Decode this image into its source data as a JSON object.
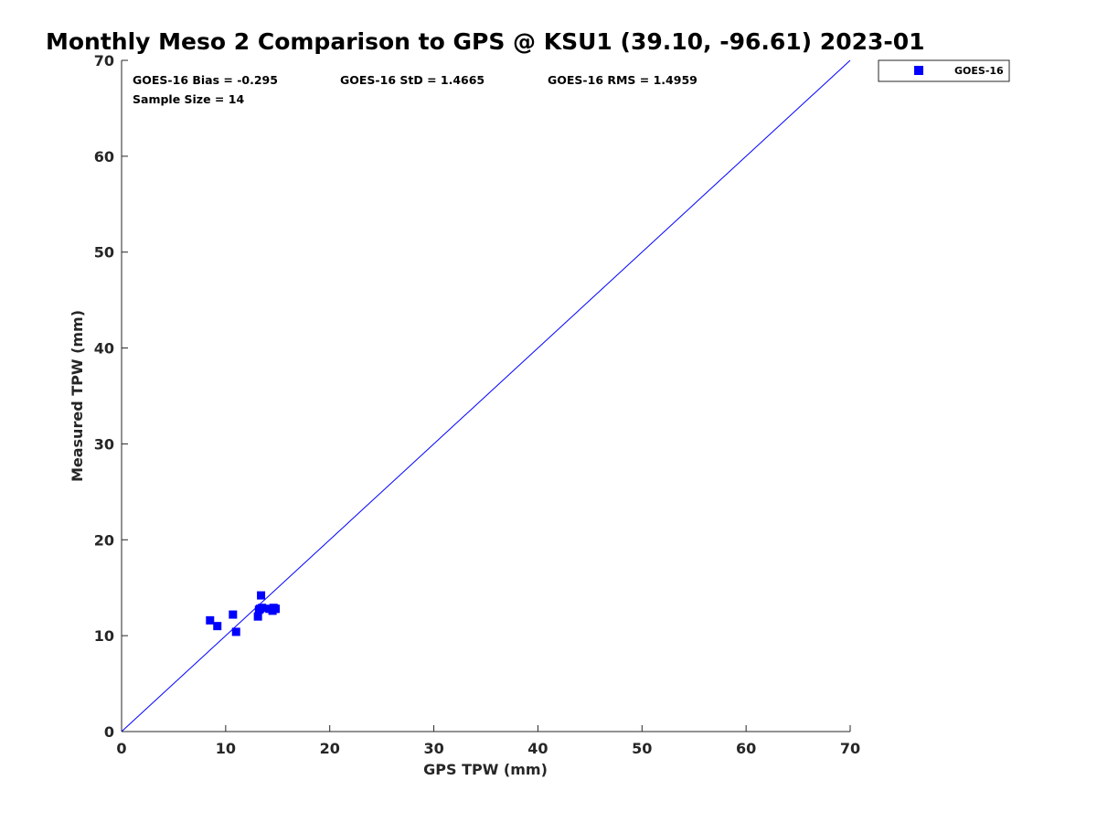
{
  "colors": {
    "series": "#0000ff",
    "line": "#0000ff",
    "axis": "#262626"
  },
  "chart_data": {
    "type": "scatter",
    "title": "Monthly Meso 2 Comparison to GPS @ KSU1 (39.10, -96.61) 2023-01",
    "xlabel": "GPS TPW (mm)",
    "ylabel": "Measured TPW (mm)",
    "xlim": [
      0,
      70
    ],
    "ylim": [
      0,
      70
    ],
    "xticks": [
      "0",
      "10",
      "20",
      "30",
      "40",
      "50",
      "60",
      "70"
    ],
    "yticks": [
      "0",
      "10",
      "20",
      "30",
      "40",
      "50",
      "60",
      "70"
    ],
    "grid": false,
    "legend": {
      "placement": "outside-top-right",
      "entries": [
        "GOES-16"
      ]
    },
    "reference_line": {
      "from": [
        0,
        0
      ],
      "to": [
        70,
        70
      ]
    },
    "stats": {
      "bias": "GOES-16 Bias = -0.295",
      "std": "GOES-16 StD = 1.4665",
      "rms": "GOES-16 RMS = 1.4959",
      "sample": "Sample Size = 14"
    },
    "series": [
      {
        "name": "GOES-16",
        "marker": "square",
        "points": [
          [
            8.5,
            11.6
          ],
          [
            9.2,
            11.0
          ],
          [
            10.7,
            12.2
          ],
          [
            11.0,
            10.4
          ],
          [
            13.1,
            12.0
          ],
          [
            13.2,
            12.7
          ],
          [
            13.4,
            14.2
          ],
          [
            13.5,
            12.9
          ],
          [
            14.2,
            12.8
          ],
          [
            14.5,
            12.6
          ],
          [
            14.7,
            12.8
          ],
          [
            14.8,
            12.8
          ],
          [
            13.3,
            12.8
          ],
          [
            14.6,
            12.9
          ]
        ]
      }
    ]
  }
}
